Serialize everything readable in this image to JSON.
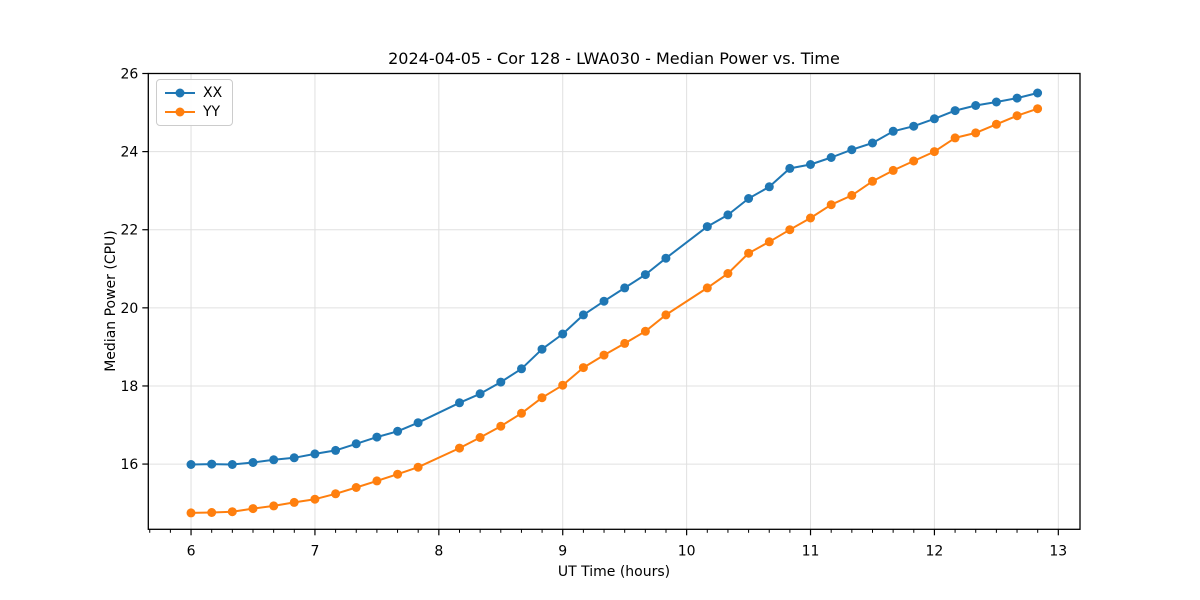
{
  "page": {
    "background": "#ffffff"
  },
  "colors": {
    "grid": "#e0e0e0",
    "spine": "#000000",
    "tick": "#000000",
    "text": "#000000",
    "legend_border": "#cccccc",
    "series_xx": "#1f77b4",
    "series_yy": "#ff7f0e"
  },
  "chart_data": {
    "type": "line",
    "title": "2024-04-05 - Cor 128 - LWA030 - Median Power vs. Time",
    "xlabel": "UT Time (hours)",
    "ylabel": "Median Power (CPU)",
    "xlim": [
      5.655,
      13.175
    ],
    "ylim": [
      14.33,
      26.0
    ],
    "x_major_ticks": [
      6,
      7,
      8,
      9,
      10,
      11,
      12,
      13
    ],
    "x_minor_tick_step": 0.16667,
    "y_major_ticks": [
      16,
      18,
      20,
      22,
      24,
      26
    ],
    "grid": "major-both",
    "legend_position": "upper-left",
    "marker": "circle",
    "x": [
      6.0,
      6.167,
      6.333,
      6.5,
      6.667,
      6.833,
      7.0,
      7.167,
      7.333,
      7.5,
      7.667,
      7.833,
      8.167,
      8.333,
      8.5,
      8.667,
      8.833,
      9.0,
      9.167,
      9.333,
      9.5,
      9.667,
      9.833,
      10.167,
      10.333,
      10.5,
      10.667,
      10.833,
      11.0,
      11.167,
      11.333,
      11.5,
      11.667,
      11.833,
      12.0,
      12.167,
      12.333,
      12.5,
      12.667,
      12.833
    ],
    "series": [
      {
        "name": "XX",
        "color": "#1f77b4",
        "values": [
          15.99,
          16.0,
          15.99,
          16.04,
          16.11,
          16.16,
          16.26,
          16.35,
          16.52,
          16.69,
          16.84,
          17.06,
          17.57,
          17.8,
          18.1,
          18.44,
          18.94,
          19.33,
          19.82,
          20.17,
          20.51,
          20.85,
          21.27,
          22.08,
          22.38,
          22.8,
          23.1,
          23.57,
          23.67,
          23.85,
          24.05,
          24.22,
          24.52,
          24.65,
          24.84,
          25.05,
          25.18,
          25.27,
          25.37,
          25.5
        ]
      },
      {
        "name": "YY",
        "color": "#ff7f0e",
        "values": [
          14.75,
          14.76,
          14.78,
          14.86,
          14.93,
          15.02,
          15.1,
          15.24,
          15.4,
          15.57,
          15.74,
          15.92,
          16.41,
          16.68,
          16.97,
          17.3,
          17.7,
          18.02,
          18.47,
          18.79,
          19.09,
          19.4,
          19.82,
          20.51,
          20.88,
          21.4,
          21.69,
          22.0,
          22.3,
          22.64,
          22.88,
          23.24,
          23.52,
          23.76,
          24.0,
          24.35,
          24.48,
          24.7,
          24.92,
          25.1
        ]
      }
    ]
  }
}
